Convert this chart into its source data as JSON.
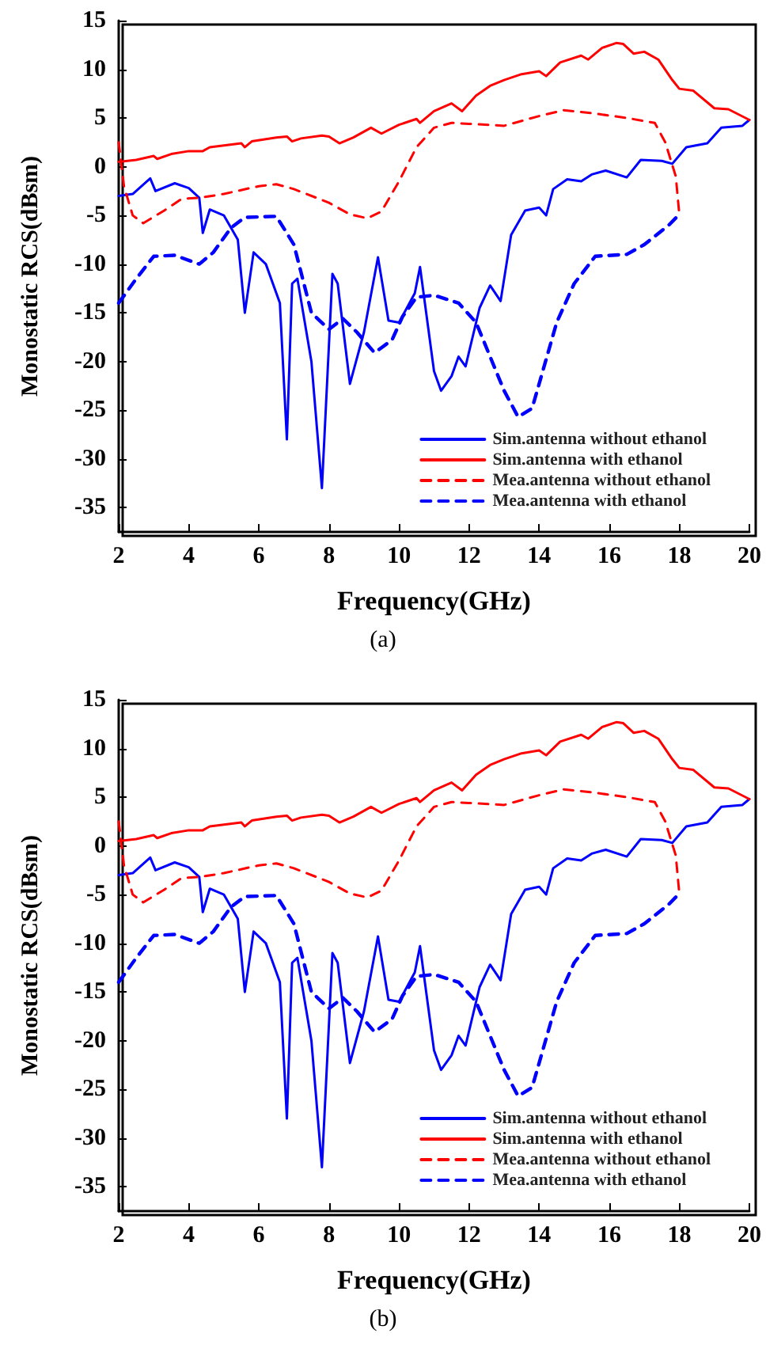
{
  "chart_data": [
    {
      "type": "line",
      "xlabel": "Frequency(GHz)",
      "ylabel": "Monostatic RCS(dBsm)",
      "annotations": [
        "(a)"
      ],
      "xlim": [
        2,
        20
      ],
      "xticks": [
        2,
        4,
        6,
        8,
        10,
        12,
        14,
        16,
        18,
        20
      ],
      "ylim": [
        -37.5,
        15
      ],
      "yticks": [
        -35,
        -30,
        -25,
        -20,
        -15,
        -10,
        -5,
        0,
        5,
        10,
        15
      ],
      "grid": false,
      "legend": "bottom right",
      "marker": "none",
      "series": [
        {
          "name": "Sim.antenna without ethanol",
          "color": "#0000ff",
          "line_style": "solid",
          "x": [
            2,
            2.4,
            2.9,
            3.05,
            3.6,
            4,
            4.3,
            4.4,
            4.6,
            5,
            5.4,
            5.6,
            5.85,
            6.2,
            6.6,
            6.8,
            6.95,
            7.1,
            7.5,
            7.8,
            8.1,
            8.25,
            8.6,
            9,
            9.4,
            9.7,
            10,
            10.45,
            10.6,
            11,
            11.2,
            11.5,
            11.7,
            11.9,
            12.3,
            12.6,
            12.9,
            13.2,
            13.6,
            14,
            14.2,
            14.4,
            14.8,
            15.2,
            15.5,
            15.9,
            16.5,
            16.9,
            17.5,
            17.8,
            18.2,
            18.8,
            19.2,
            19.8,
            20
          ],
          "values": [
            -3,
            -2.8,
            -1.2,
            -2.5,
            -1.7,
            -2.2,
            -3.2,
            -6.8,
            -4.4,
            -5,
            -7.5,
            -15,
            -8.8,
            -10,
            -14,
            -28,
            -12,
            -11.5,
            -20,
            -33,
            -11,
            -12,
            -22.3,
            -17,
            -9.3,
            -15.8,
            -16,
            -13,
            -10.3,
            -21,
            -23,
            -21.5,
            -19.5,
            -20.5,
            -14.5,
            -12.2,
            -13.8,
            -7,
            -4.5,
            -4.2,
            -5,
            -2.3,
            -1.3,
            -1.5,
            -0.8,
            -0.4,
            -1.1,
            0.7,
            0.6,
            0.3,
            2,
            2.4,
            4,
            4.2,
            4.8
          ]
        },
        {
          "name": "Sim.antenna with ethanol",
          "color": "#ff0000",
          "line_style": "solid",
          "x": [
            2,
            2.5,
            3,
            3.1,
            3.5,
            4,
            4.4,
            4.6,
            5.5,
            5.6,
            5.8,
            6.5,
            6.8,
            6.95,
            7.2,
            7.8,
            8,
            8.3,
            8.7,
            9.2,
            9.5,
            10,
            10.5,
            10.6,
            11,
            11.5,
            11.8,
            12.2,
            12.6,
            13,
            13.5,
            14,
            14.2,
            14.6,
            15.2,
            15.4,
            15.8,
            16.2,
            16.4,
            16.7,
            17,
            17.4,
            17.8,
            18,
            18.4,
            19,
            19.4,
            20
          ],
          "values": [
            0.5,
            0.7,
            1.1,
            0.8,
            1.3,
            1.6,
            1.6,
            2,
            2.4,
            2,
            2.6,
            3,
            3.1,
            2.6,
            2.9,
            3.2,
            3.1,
            2.4,
            3,
            4,
            3.4,
            4.3,
            4.9,
            4.5,
            5.7,
            6.5,
            5.7,
            7.3,
            8.3,
            8.9,
            9.5,
            9.8,
            9.3,
            10.7,
            11.4,
            11,
            12.2,
            12.7,
            12.6,
            11.6,
            11.8,
            11,
            8.9,
            8,
            7.8,
            6,
            5.9,
            4.8
          ]
        },
        {
          "name": "Mea.antenna without ethanol",
          "color": "#ff0000",
          "line_style": "dashed",
          "x": [
            2,
            2.15,
            2.4,
            2.7,
            3.3,
            3.8,
            4.3,
            5,
            6,
            6.5,
            7,
            8,
            8.6,
            9.1,
            9.5,
            10,
            10.5,
            11,
            11.5,
            12,
            13,
            14,
            14.7,
            15.5,
            16.5,
            17.3,
            17.6,
            17.9,
            18
          ],
          "values": [
            2.5,
            -2,
            -5,
            -5.8,
            -4.5,
            -3.3,
            -3.2,
            -2.8,
            -2,
            -1.8,
            -2.3,
            -3.7,
            -4.9,
            -5.3,
            -4.6,
            -1.5,
            2,
            4,
            4.5,
            4.4,
            4.2,
            5.2,
            5.8,
            5.5,
            5,
            4.5,
            2.5,
            -1,
            -4.9
          ]
        },
        {
          "name": "Mea.antenna with ethanol",
          "color": "#0000ff",
          "line_style": "dashed",
          "x": [
            2,
            2.5,
            3,
            3.6,
            4.3,
            4.7,
            5.2,
            5.6,
            6.5,
            7,
            7.5,
            8,
            8.4,
            8.8,
            9.3,
            9.8,
            10.1,
            10.5,
            11,
            11.7,
            12.2,
            13,
            13.4,
            13.8,
            14.5,
            15,
            15.6,
            16.5,
            17,
            17.7,
            18
          ],
          "values": [
            -14,
            -11.5,
            -9.2,
            -9.1,
            -10,
            -8.8,
            -6.3,
            -5.2,
            -5.1,
            -8,
            -15,
            -16.7,
            -15.6,
            -17,
            -19.1,
            -17.8,
            -15.4,
            -13.4,
            -13.2,
            -14,
            -16,
            -23,
            -25.7,
            -24.8,
            -16,
            -12,
            -9.2,
            -9,
            -8,
            -6,
            -4.9
          ]
        }
      ]
    },
    {
      "type": "line",
      "xlabel": "Frequency(GHz)",
      "ylabel": "Monostatic RCS(dBsm)",
      "annotations": [
        "(b)"
      ],
      "xlim": [
        2,
        20
      ],
      "xticks": [
        2,
        4,
        6,
        8,
        10,
        12,
        14,
        16,
        18,
        20
      ],
      "ylim": [
        -37.5,
        15
      ],
      "yticks": [
        -35,
        -30,
        -25,
        -20,
        -15,
        -10,
        -5,
        0,
        5,
        10,
        15
      ],
      "grid": false,
      "legend": "bottom right",
      "marker": "none",
      "series": [
        {
          "name": "Sim.antenna without ethanol",
          "color": "#0000ff",
          "line_style": "solid",
          "x": [
            2,
            2.4,
            2.9,
            3.05,
            3.6,
            4,
            4.3,
            4.4,
            4.6,
            5,
            5.4,
            5.6,
            5.85,
            6.2,
            6.6,
            6.8,
            6.95,
            7.1,
            7.5,
            7.8,
            8.1,
            8.25,
            8.6,
            9,
            9.4,
            9.7,
            10,
            10.45,
            10.6,
            11,
            11.2,
            11.5,
            11.7,
            11.9,
            12.3,
            12.6,
            12.9,
            13.2,
            13.6,
            14,
            14.2,
            14.4,
            14.8,
            15.2,
            15.5,
            15.9,
            16.5,
            16.9,
            17.5,
            17.8,
            18.2,
            18.8,
            19.2,
            19.8,
            20
          ],
          "values": [
            -3,
            -2.8,
            -1.2,
            -2.5,
            -1.7,
            -2.2,
            -3.2,
            -6.8,
            -4.4,
            -5,
            -7.5,
            -15,
            -8.8,
            -10,
            -14,
            -28,
            -12,
            -11.5,
            -20,
            -33,
            -11,
            -12,
            -22.3,
            -17,
            -9.3,
            -15.8,
            -16,
            -13,
            -10.3,
            -21,
            -23,
            -21.5,
            -19.5,
            -20.5,
            -14.5,
            -12.2,
            -13.8,
            -7,
            -4.5,
            -4.2,
            -5,
            -2.3,
            -1.3,
            -1.5,
            -0.8,
            -0.4,
            -1.1,
            0.7,
            0.6,
            0.3,
            2,
            2.4,
            4,
            4.2,
            4.8
          ]
        },
        {
          "name": "Sim.antenna with ethanol",
          "color": "#ff0000",
          "line_style": "solid",
          "x": [
            2,
            2.5,
            3,
            3.1,
            3.5,
            4,
            4.4,
            4.6,
            5.5,
            5.6,
            5.8,
            6.5,
            6.8,
            6.95,
            7.2,
            7.8,
            8,
            8.3,
            8.7,
            9.2,
            9.5,
            10,
            10.5,
            10.6,
            11,
            11.5,
            11.8,
            12.2,
            12.6,
            13,
            13.5,
            14,
            14.2,
            14.6,
            15.2,
            15.4,
            15.8,
            16.2,
            16.4,
            16.7,
            17,
            17.4,
            17.8,
            18,
            18.4,
            19,
            19.4,
            20
          ],
          "values": [
            0.5,
            0.7,
            1.1,
            0.8,
            1.3,
            1.6,
            1.6,
            2,
            2.4,
            2,
            2.6,
            3,
            3.1,
            2.6,
            2.9,
            3.2,
            3.1,
            2.4,
            3,
            4,
            3.4,
            4.3,
            4.9,
            4.5,
            5.7,
            6.5,
            5.7,
            7.3,
            8.3,
            8.9,
            9.5,
            9.8,
            9.3,
            10.7,
            11.4,
            11,
            12.2,
            12.7,
            12.6,
            11.6,
            11.8,
            11,
            8.9,
            8,
            7.8,
            6,
            5.9,
            4.8
          ]
        },
        {
          "name": "Mea.antenna without ethanol",
          "color": "#ff0000",
          "line_style": "dashed",
          "x": [
            2,
            2.15,
            2.4,
            2.7,
            3.3,
            3.8,
            4.3,
            5,
            6,
            6.5,
            7,
            8,
            8.6,
            9.1,
            9.5,
            10,
            10.5,
            11,
            11.5,
            12,
            13,
            14,
            14.7,
            15.5,
            16.5,
            17.3,
            17.6,
            17.9,
            18
          ],
          "values": [
            2.5,
            -2,
            -5,
            -5.8,
            -4.5,
            -3.3,
            -3.2,
            -2.8,
            -2,
            -1.8,
            -2.3,
            -3.7,
            -4.9,
            -5.3,
            -4.6,
            -1.5,
            2,
            4,
            4.5,
            4.4,
            4.2,
            5.2,
            5.8,
            5.5,
            5,
            4.5,
            2.5,
            -1,
            -4.9
          ]
        },
        {
          "name": "Mea.antenna with ethanol",
          "color": "#0000ff",
          "line_style": "dashed",
          "x": [
            2,
            2.5,
            3,
            3.6,
            4.3,
            4.7,
            5.2,
            5.6,
            6.5,
            7,
            7.5,
            8,
            8.4,
            8.8,
            9.3,
            9.8,
            10.1,
            10.5,
            11,
            11.7,
            12.2,
            13,
            13.4,
            13.8,
            14.5,
            15,
            15.6,
            16.5,
            17,
            17.7,
            18
          ],
          "values": [
            -14,
            -11.5,
            -9.2,
            -9.1,
            -10,
            -8.8,
            -6.3,
            -5.2,
            -5.1,
            -8,
            -15,
            -16.7,
            -15.6,
            -17,
            -19.1,
            -17.8,
            -15.4,
            -13.4,
            -13.2,
            -14,
            -16,
            -23,
            -25.7,
            -24.8,
            -16,
            -12,
            -9.2,
            -9,
            -8,
            -6,
            -4.9
          ]
        }
      ]
    }
  ]
}
